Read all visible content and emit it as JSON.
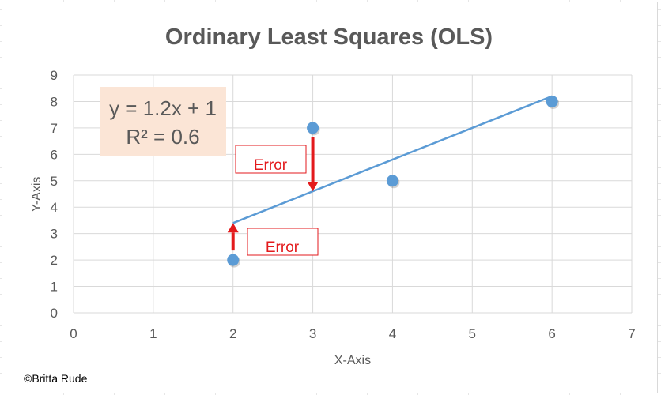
{
  "chart_data": {
    "type": "scatter",
    "title": "Ordinary Least Squares (OLS)",
    "xlabel": "X-Axis",
    "ylabel": "Y-Axis",
    "xlim": [
      0,
      7
    ],
    "ylim": [
      0,
      9
    ],
    "x_ticks": [
      "0",
      "1",
      "2",
      "3",
      "4",
      "5",
      "6",
      "7"
    ],
    "y_ticks": [
      "0",
      "1",
      "2",
      "3",
      "4",
      "5",
      "6",
      "7",
      "8",
      "9"
    ],
    "grid": true,
    "points": [
      {
        "x": 2,
        "y": 2
      },
      {
        "x": 3,
        "y": 7
      },
      {
        "x": 4,
        "y": 5
      },
      {
        "x": 6,
        "y": 8
      }
    ],
    "trendline": {
      "slope": 1.2,
      "intercept": 1,
      "x_start": 2,
      "x_end": 6
    },
    "equation_line1": "y = 1.2x + 1",
    "equation_line2": "R² = 0.6",
    "error_annotations": [
      {
        "label": "Error",
        "x": 3,
        "y_from": 7,
        "y_to": 4.6
      },
      {
        "label": "Error",
        "x": 2,
        "y_from": 2,
        "y_to": 3.4
      }
    ],
    "colors": {
      "points": "#5b9bd5",
      "trendline": "#5b9bd5",
      "error": "#e31a1c",
      "equation_box": "#fbe5d6",
      "grid": "#d9d9d9",
      "text": "#595959"
    }
  },
  "copyright": "©Britta Rude"
}
